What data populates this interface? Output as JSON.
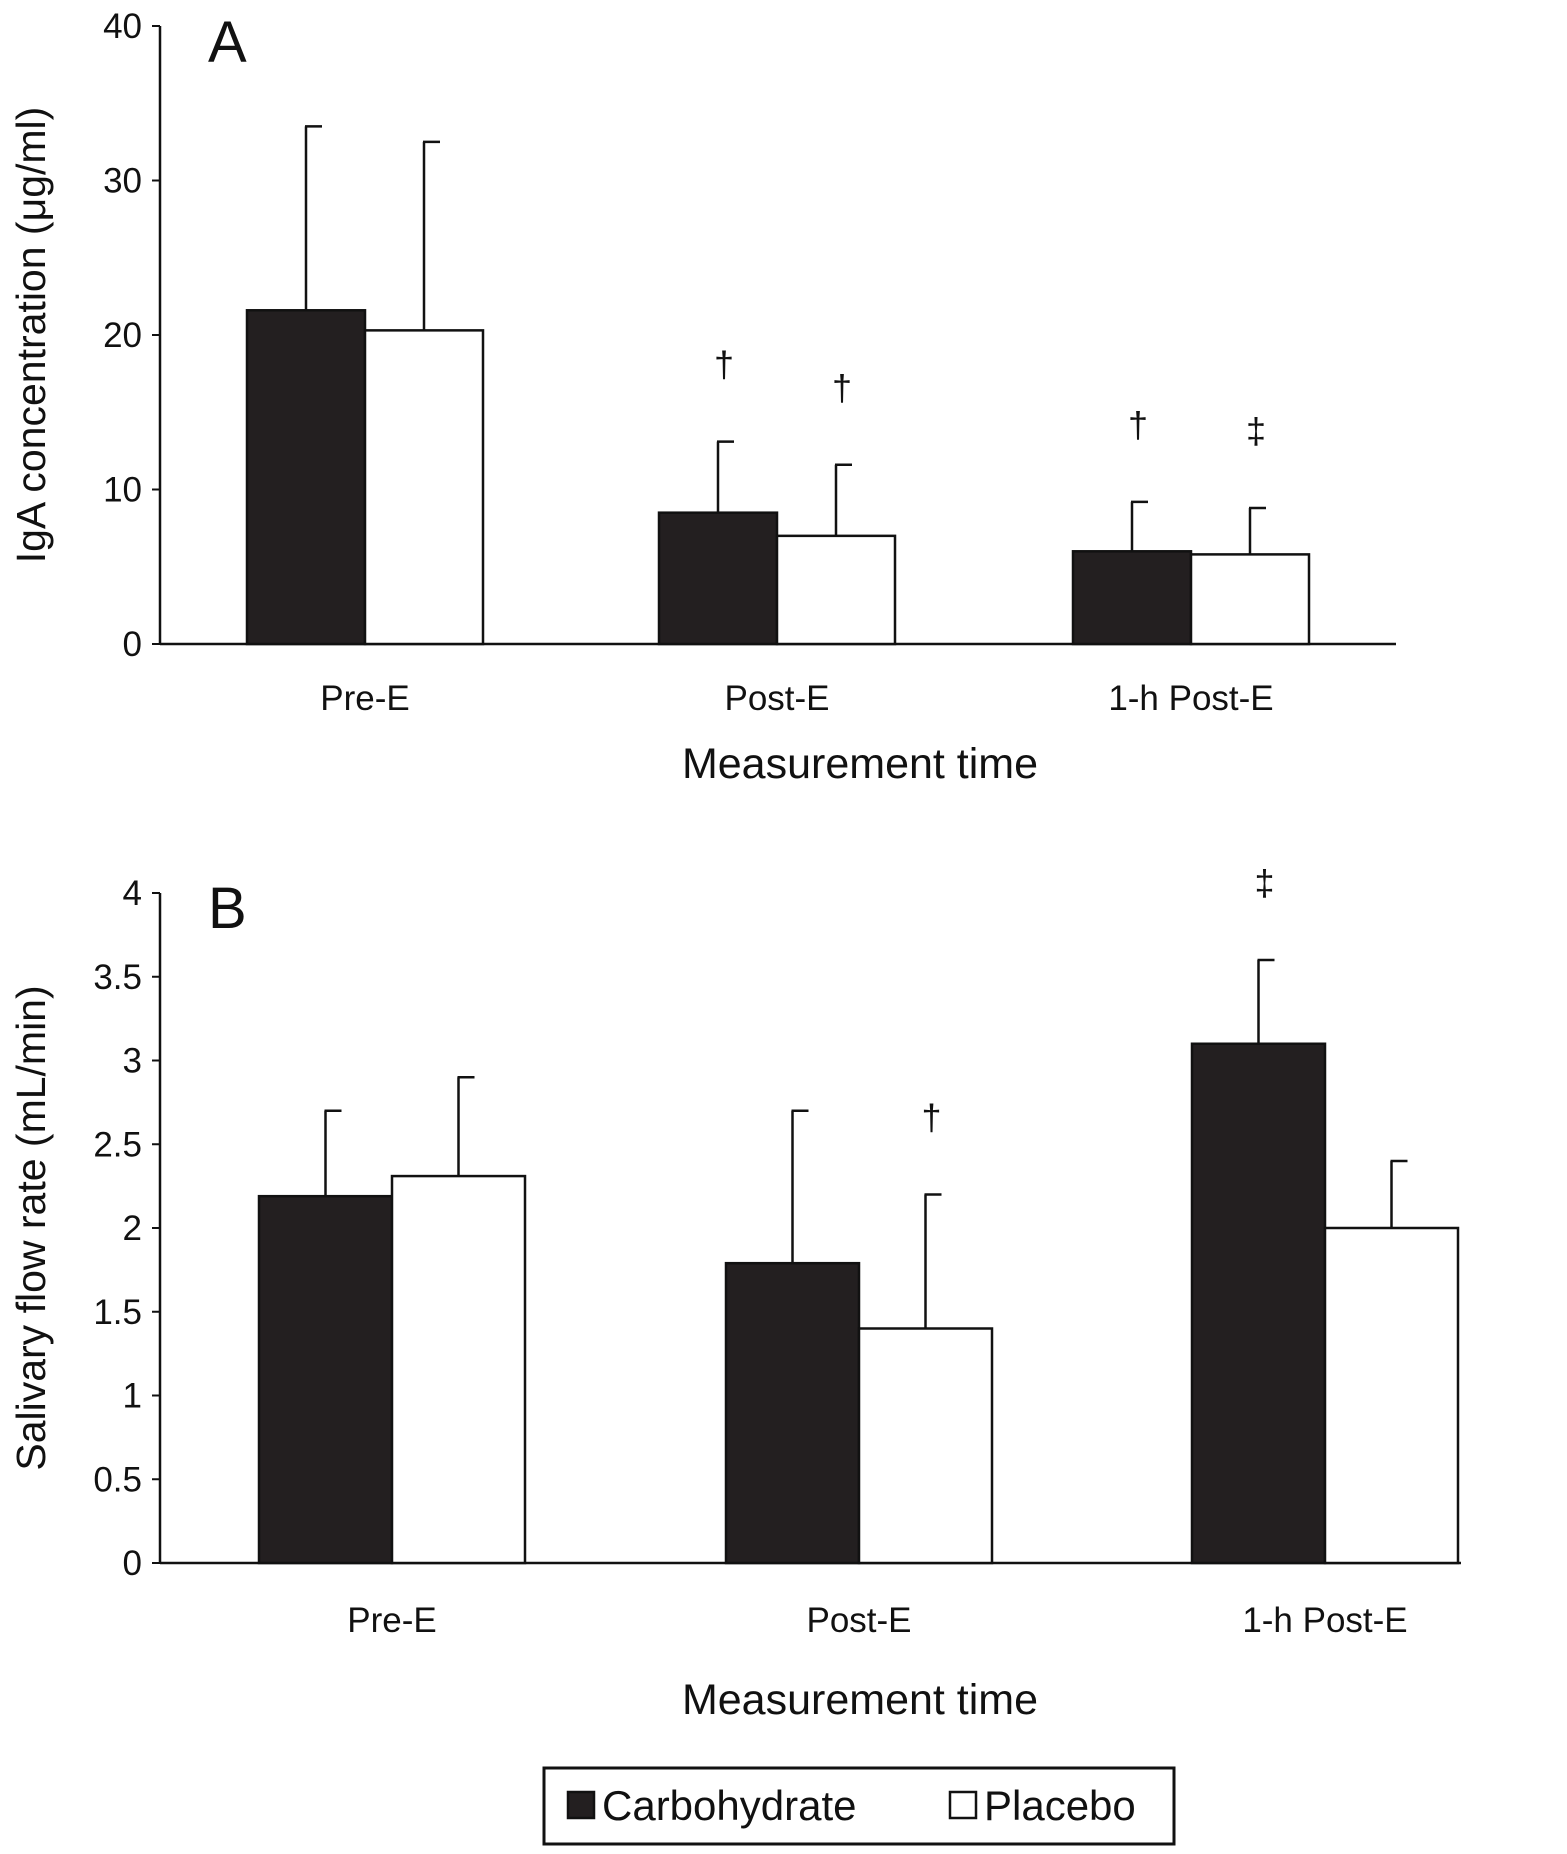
{
  "chart_data": [
    {
      "type": "bar",
      "panel_label": "A",
      "title": "",
      "xlabel": "Measurement time",
      "ylabel": "IgA concentration (μg/ml)",
      "ylim": [
        0,
        40
      ],
      "yticks": [
        "0",
        "10",
        "20",
        "30",
        "40"
      ],
      "ytick_values": [
        0,
        10,
        20,
        30,
        40
      ],
      "categories": [
        "Pre-E",
        "Post-E",
        "1-h Post-E"
      ],
      "series": [
        {
          "name": "Carbohydrate",
          "color": "#231f20",
          "values": [
            21.6,
            8.5,
            6.0
          ],
          "error": [
            11.9,
            4.6,
            3.2
          ],
          "annotations": [
            "",
            "†",
            "†"
          ]
        },
        {
          "name": "Placebo",
          "color": "#ffffff",
          "values": [
            20.3,
            7.0,
            5.8
          ],
          "error": [
            12.2,
            4.6,
            3.0
          ],
          "annotations": [
            "",
            "†",
            "‡"
          ]
        }
      ]
    },
    {
      "type": "bar",
      "panel_label": "B",
      "title": "",
      "xlabel": "Measurement time",
      "ylabel": "Salivary flow rate (mL/min)",
      "ylim": [
        0,
        4
      ],
      "yticks": [
        "0",
        "0.5",
        "1",
        "1.5",
        "2",
        "2.5",
        "3",
        "3.5",
        "4"
      ],
      "ytick_values": [
        0,
        0.5,
        1,
        1.5,
        2,
        2.5,
        3,
        3.5,
        4
      ],
      "categories": [
        "Pre-E",
        "Post-E",
        "1-h Post-E"
      ],
      "series": [
        {
          "name": "Carbohydrate",
          "color": "#231f20",
          "values": [
            2.19,
            1.79,
            3.1
          ],
          "error": [
            0.51,
            0.91,
            0.5
          ],
          "annotations": [
            "",
            "",
            "‡"
          ]
        },
        {
          "name": "Placebo",
          "color": "#ffffff",
          "values": [
            2.31,
            1.4,
            2.0
          ],
          "error": [
            0.59,
            0.8,
            0.4
          ],
          "annotations": [
            "",
            "†",
            ""
          ]
        }
      ]
    }
  ],
  "legend": {
    "placement": "bottom-center",
    "items": [
      {
        "label": "Carbohydrate",
        "color": "#231f20"
      },
      {
        "label": "Placebo",
        "color": "#ffffff"
      }
    ]
  }
}
